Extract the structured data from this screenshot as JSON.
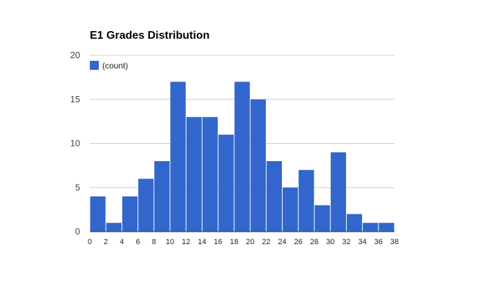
{
  "chart_data": {
    "type": "bar",
    "title": "E1 Grades Distribution",
    "xlabel": "",
    "ylabel": "",
    "x_ticks": [
      0,
      2,
      4,
      6,
      8,
      10,
      12,
      14,
      16,
      18,
      20,
      22,
      24,
      26,
      28,
      30,
      32,
      34,
      36,
      38
    ],
    "y_ticks": [
      0,
      5,
      10,
      15,
      20
    ],
    "xlim": [
      0,
      38
    ],
    "ylim": [
      0,
      20
    ],
    "bin_width": 2,
    "bins": [
      {
        "start": 0,
        "end": 2,
        "value": 4
      },
      {
        "start": 2,
        "end": 4,
        "value": 1
      },
      {
        "start": 4,
        "end": 6,
        "value": 4
      },
      {
        "start": 6,
        "end": 8,
        "value": 6
      },
      {
        "start": 8,
        "end": 10,
        "value": 8
      },
      {
        "start": 10,
        "end": 12,
        "value": 17
      },
      {
        "start": 12,
        "end": 14,
        "value": 13
      },
      {
        "start": 14,
        "end": 16,
        "value": 13
      },
      {
        "start": 16,
        "end": 18,
        "value": 11
      },
      {
        "start": 18,
        "end": 20,
        "value": 17
      },
      {
        "start": 20,
        "end": 22,
        "value": 15
      },
      {
        "start": 22,
        "end": 24,
        "value": 8
      },
      {
        "start": 24,
        "end": 26,
        "value": 5
      },
      {
        "start": 26,
        "end": 28,
        "value": 7
      },
      {
        "start": 28,
        "end": 30,
        "value": 3
      },
      {
        "start": 30,
        "end": 32,
        "value": 9
      },
      {
        "start": 32,
        "end": 34,
        "value": 2
      },
      {
        "start": 34,
        "end": 36,
        "value": 1
      },
      {
        "start": 36,
        "end": 38,
        "value": 1
      }
    ],
    "series": [
      {
        "name": "(count)",
        "color": "#3366cc"
      }
    ],
    "legend_position": "top-left",
    "grid": true
  }
}
